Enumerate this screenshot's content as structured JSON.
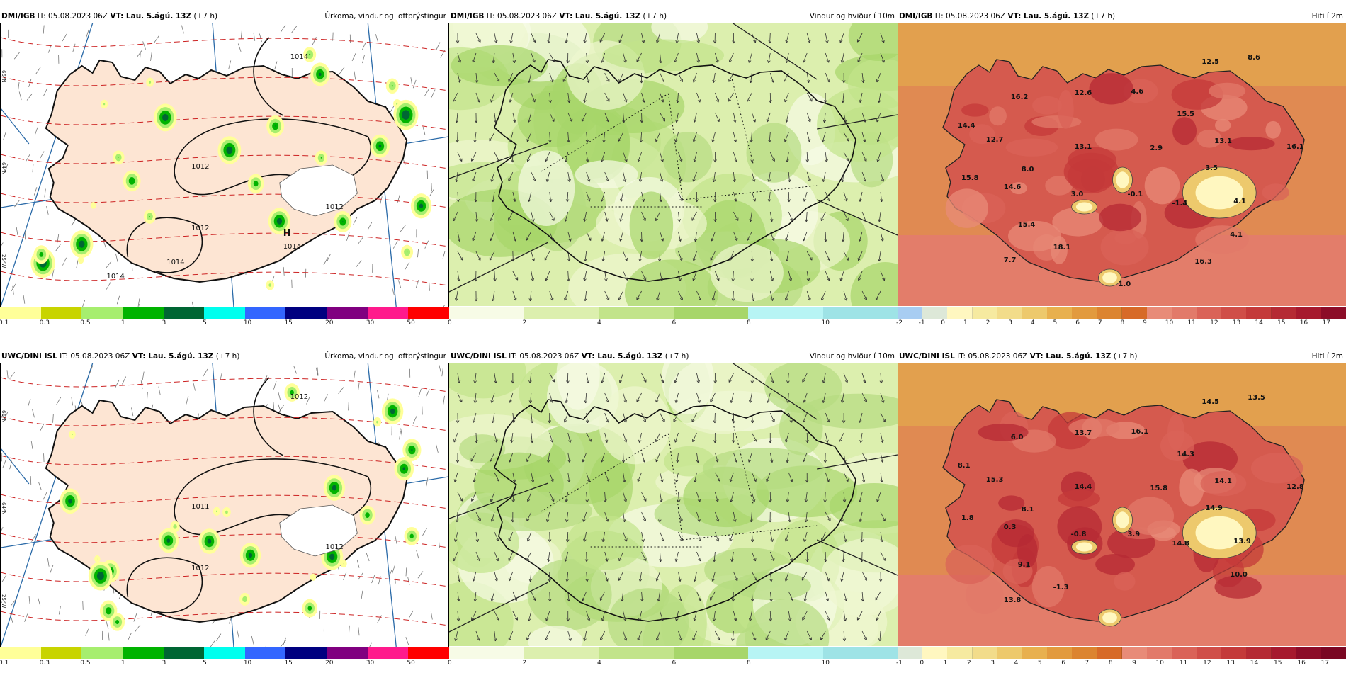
{
  "panels": [
    {
      "id": "p1",
      "source": "DMI/IGB",
      "it": " IT: 05.08.2023 06Z ",
      "vt_label": "VT: Lau. 5.ágú. 13Z",
      "vt_suffix": " (+7 h)",
      "product": "Úrkoma, vindur og loftþrýstingur",
      "type": "precip",
      "labels": [
        "1014",
        "1012",
        "1012",
        "1012",
        "1014",
        "H",
        "1014",
        "1014"
      ],
      "side_labels": [
        "66°N",
        "64°N",
        "25°W"
      ]
    },
    {
      "id": "p2",
      "source": "DMI/IGB",
      "it": " IT: 05.08.2023 06Z ",
      "vt_label": "VT: Lau. 5.ágú. 13Z",
      "vt_suffix": " (+7 h)",
      "product": "Vindur og hviður í 10m",
      "type": "wind",
      "labels": []
    },
    {
      "id": "p3",
      "source": "DMI/IGB",
      "it": " IT: 05.08.2023 06Z ",
      "vt_label": "VT: Lau. 5.ágú. 13Z",
      "vt_suffix": " (+7 h)",
      "product": "Hiti í 2m",
      "type": "temp",
      "labels": [
        "12.5",
        "8.6",
        "16.2",
        "12.6",
        "4.6",
        "14.4",
        "15.5",
        "12.7",
        "13.1",
        "2.9",
        "13.1",
        "16.1",
        "8.0",
        "3.5",
        "15.8",
        "14.6",
        "3.0",
        "-0.1",
        "4.1",
        "-1.4",
        "15.4",
        "4.1",
        "18.1",
        "7.7",
        "16.3",
        "1.0"
      ]
    },
    {
      "id": "p4",
      "source": "UWC/DINI ISL",
      "it": " IT: 05.08.2023 06Z ",
      "vt_label": "VT: Lau. 5.ágú. 13Z",
      "vt_suffix": " (+7 h)",
      "product": "Úrkoma, vindur og loftþrýstingur",
      "type": "precip",
      "labels": [
        "1012",
        "1011",
        "1012",
        "1012"
      ],
      "side_labels": [
        "66°N",
        "64°N",
        "25°W"
      ]
    },
    {
      "id": "p5",
      "source": "UWC/DINI ISL",
      "it": " IT: 05.08.2023 06Z ",
      "vt_label": "VT: Lau. 5.ágú. 13Z",
      "vt_suffix": " (+7 h)",
      "product": "Vindur og hviður í 10m",
      "type": "wind",
      "labels": []
    },
    {
      "id": "p6",
      "source": "UWC/DINI ISL",
      "it": " IT: 05.08.2023 06Z ",
      "vt_label": "VT: Lau. 5.ágú. 13Z",
      "vt_suffix": " (+7 h)",
      "product": "Hiti í 2m",
      "type": "temp",
      "labels": [
        "14.5",
        "13.5",
        "6.0",
        "13.7",
        "16.1",
        "8.1",
        "14.3",
        "15.3",
        "14.4",
        "15.8",
        "14.1",
        "12.8",
        "8.1",
        "14.9",
        "1.8",
        "0.3",
        "-0.8",
        "3.9",
        "13.9",
        "14.8",
        "9.1",
        "10.0",
        "-1.3",
        "13.8"
      ]
    }
  ],
  "colorbars": {
    "precip": {
      "colors": [
        "#ffff99",
        "#c8d400",
        "#a6ee6e",
        "#00b300",
        "#006633",
        "#00ffee",
        "#3366ff",
        "#000080",
        "#800080",
        "#ff1a8c",
        "#ff0000"
      ],
      "ticks": [
        "0.1",
        "0.3",
        "0.5",
        "1",
        "3",
        "5",
        "10",
        "15",
        "20",
        "30",
        "50"
      ]
    },
    "wind": {
      "colors": [
        "#f7fbe6",
        "#dcefae",
        "#c2e48a",
        "#a7d66a",
        "#b7f4f4",
        "#9ee3e6"
      ],
      "ticks": [
        "0",
        "2",
        "4",
        "6",
        "8",
        "10"
      ]
    },
    "temp_top": {
      "colors": [
        "#a8cdf2",
        "#dde8d8",
        "#fff7c0",
        "#f6eaa0",
        "#f2dc8a",
        "#edc96c",
        "#e8b04e",
        "#e29a3e",
        "#dc8430",
        "#d76a28",
        "#e88b78",
        "#e27a6a",
        "#da6358",
        "#d04e48",
        "#c43a3a",
        "#b52a34",
        "#a6192e",
        "#8c0c28"
      ],
      "ticks": [
        "-2",
        "-1",
        "0",
        "1",
        "2",
        "3",
        "4",
        "5",
        "6",
        "7",
        "8",
        "9",
        "10",
        "11",
        "12",
        "13",
        "14",
        "15",
        "16",
        "17"
      ]
    },
    "temp_bottom": {
      "colors": [
        "#dde8d8",
        "#fff7c0",
        "#f6eaa0",
        "#f2dc8a",
        "#edc96c",
        "#e8b04e",
        "#e29a3e",
        "#dc8430",
        "#d76a28",
        "#e88b78",
        "#e27a6a",
        "#da6358",
        "#d04e48",
        "#c43a3a",
        "#b52a34",
        "#a6192e",
        "#8c0c28",
        "#7a0622"
      ],
      "ticks": [
        "-1",
        "0",
        "1",
        "2",
        "3",
        "4",
        "5",
        "6",
        "7",
        "8",
        "9",
        "10",
        "11",
        "12",
        "13",
        "14",
        "15",
        "16",
        "17"
      ]
    }
  }
}
